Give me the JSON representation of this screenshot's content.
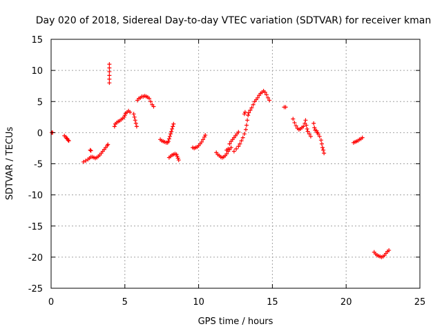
{
  "chart_data": {
    "type": "scatter",
    "title": "Day 020 of 2018, Sidereal Day-to-day VTEC variation (SDTVAR) for receiver kman",
    "xlabel": "GPS time / hours",
    "ylabel": "SDTVAR / TECUs",
    "xlim": [
      0,
      25
    ],
    "ylim": [
      -25,
      15
    ],
    "xticks": [
      0,
      5,
      10,
      15,
      20,
      25
    ],
    "yticks": [
      -25,
      -20,
      -15,
      -10,
      -5,
      0,
      5,
      10,
      15
    ],
    "grid": true,
    "marker": "+",
    "color": "#ff0000",
    "series": [
      {
        "name": "SDTVAR",
        "points": [
          [
            0.05,
            0.0
          ],
          [
            0.1,
            0.0
          ],
          [
            0.9,
            -0.5
          ],
          [
            1.0,
            -0.7
          ],
          [
            1.05,
            -0.9
          ],
          [
            1.1,
            -1.0
          ],
          [
            1.15,
            -1.2
          ],
          [
            1.2,
            -1.3
          ],
          [
            2.2,
            -4.7
          ],
          [
            2.35,
            -4.5
          ],
          [
            2.5,
            -4.3
          ],
          [
            2.6,
            -4.1
          ],
          [
            2.7,
            -3.9
          ],
          [
            2.8,
            -3.9
          ],
          [
            2.9,
            -4.0
          ],
          [
            3.0,
            -4.1
          ],
          [
            3.1,
            -4.0
          ],
          [
            3.2,
            -3.8
          ],
          [
            3.3,
            -3.6
          ],
          [
            3.4,
            -3.3
          ],
          [
            3.5,
            -3.0
          ],
          [
            3.6,
            -2.7
          ],
          [
            3.7,
            -2.4
          ],
          [
            3.8,
            -2.1
          ],
          [
            3.85,
            -1.9
          ],
          [
            2.65,
            -2.8
          ],
          [
            2.7,
            -2.9
          ],
          [
            3.95,
            11.0
          ],
          [
            3.95,
            10.4
          ],
          [
            3.95,
            9.8
          ],
          [
            3.95,
            9.2
          ],
          [
            3.95,
            8.6
          ],
          [
            3.95,
            8.0
          ],
          [
            4.3,
            1.0
          ],
          [
            4.35,
            1.4
          ],
          [
            4.45,
            1.6
          ],
          [
            4.55,
            1.8
          ],
          [
            4.65,
            1.9
          ],
          [
            4.75,
            2.1
          ],
          [
            4.85,
            2.3
          ],
          [
            4.95,
            2.5
          ],
          [
            5.0,
            2.8
          ],
          [
            5.05,
            3.1
          ],
          [
            5.15,
            3.3
          ],
          [
            5.25,
            3.5
          ],
          [
            5.35,
            3.3
          ],
          [
            5.6,
            3.0
          ],
          [
            5.65,
            2.5
          ],
          [
            5.7,
            2.0
          ],
          [
            5.75,
            1.5
          ],
          [
            5.8,
            1.0
          ],
          [
            5.85,
            5.2
          ],
          [
            5.95,
            5.5
          ],
          [
            6.05,
            5.6
          ],
          [
            6.15,
            5.8
          ],
          [
            6.25,
            5.8
          ],
          [
            6.35,
            5.9
          ],
          [
            6.45,
            5.8
          ],
          [
            6.55,
            5.7
          ],
          [
            6.65,
            5.5
          ],
          [
            6.75,
            5.0
          ],
          [
            6.85,
            4.5
          ],
          [
            6.95,
            4.2
          ],
          [
            7.4,
            -1.1
          ],
          [
            7.5,
            -1.3
          ],
          [
            7.6,
            -1.4
          ],
          [
            7.7,
            -1.5
          ],
          [
            7.8,
            -1.6
          ],
          [
            7.9,
            -1.6
          ],
          [
            7.95,
            -1.4
          ],
          [
            8.0,
            -1.0
          ],
          [
            8.05,
            -0.6
          ],
          [
            8.1,
            -0.2
          ],
          [
            8.15,
            0.2
          ],
          [
            8.2,
            0.6
          ],
          [
            8.25,
            1.0
          ],
          [
            8.3,
            1.4
          ],
          [
            8.0,
            -4.0
          ],
          [
            8.1,
            -3.8
          ],
          [
            8.2,
            -3.6
          ],
          [
            8.3,
            -3.5
          ],
          [
            8.4,
            -3.4
          ],
          [
            8.5,
            -3.5
          ],
          [
            8.55,
            -3.8
          ],
          [
            8.6,
            -4.1
          ],
          [
            8.65,
            -4.4
          ],
          [
            9.6,
            -2.4
          ],
          [
            9.7,
            -2.5
          ],
          [
            9.8,
            -2.4
          ],
          [
            9.9,
            -2.3
          ],
          [
            10.0,
            -2.1
          ],
          [
            10.1,
            -1.8
          ],
          [
            10.2,
            -1.5
          ],
          [
            10.3,
            -1.1
          ],
          [
            10.4,
            -0.7
          ],
          [
            10.45,
            -0.4
          ],
          [
            11.2,
            -3.2
          ],
          [
            11.3,
            -3.5
          ],
          [
            11.4,
            -3.7
          ],
          [
            11.5,
            -3.9
          ],
          [
            11.6,
            -4.0
          ],
          [
            11.7,
            -3.9
          ],
          [
            11.8,
            -3.7
          ],
          [
            11.9,
            -3.4
          ],
          [
            12.0,
            -3.0
          ],
          [
            12.1,
            -2.7
          ],
          [
            12.2,
            -2.4
          ],
          [
            11.9,
            -2.8
          ],
          [
            12.0,
            -2.6
          ],
          [
            12.1,
            -1.8
          ],
          [
            12.2,
            -1.4
          ],
          [
            12.3,
            -1.1
          ],
          [
            12.4,
            -0.8
          ],
          [
            12.5,
            -0.5
          ],
          [
            12.6,
            -0.2
          ],
          [
            12.7,
            0.1
          ],
          [
            12.4,
            -3.0
          ],
          [
            12.55,
            -2.6
          ],
          [
            12.7,
            -2.2
          ],
          [
            12.8,
            -1.8
          ],
          [
            12.9,
            -1.3
          ],
          [
            13.0,
            -0.8
          ],
          [
            13.1,
            -0.2
          ],
          [
            13.2,
            0.5
          ],
          [
            13.25,
            1.2
          ],
          [
            13.3,
            2.0
          ],
          [
            13.35,
            2.8
          ],
          [
            13.1,
            3.0
          ],
          [
            13.15,
            3.3
          ],
          [
            13.4,
            3.2
          ],
          [
            13.5,
            3.6
          ],
          [
            13.6,
            4.0
          ],
          [
            13.7,
            4.5
          ],
          [
            13.8,
            5.0
          ],
          [
            13.9,
            5.3
          ],
          [
            14.0,
            5.6
          ],
          [
            14.1,
            6.0
          ],
          [
            14.2,
            6.3
          ],
          [
            14.3,
            6.5
          ],
          [
            14.4,
            6.7
          ],
          [
            14.5,
            6.5
          ],
          [
            14.6,
            6.1
          ],
          [
            14.7,
            5.6
          ],
          [
            14.8,
            5.2
          ],
          [
            15.8,
            4.1
          ],
          [
            15.9,
            4.1
          ],
          [
            16.4,
            2.2
          ],
          [
            16.5,
            1.6
          ],
          [
            16.6,
            1.1
          ],
          [
            16.7,
            0.7
          ],
          [
            16.8,
            0.5
          ],
          [
            16.9,
            0.6
          ],
          [
            17.0,
            0.8
          ],
          [
            17.1,
            1.0
          ],
          [
            17.2,
            1.5
          ],
          [
            17.25,
            2.0
          ],
          [
            17.3,
            1.2
          ],
          [
            17.35,
            0.6
          ],
          [
            17.4,
            0.2
          ],
          [
            17.5,
            -0.2
          ],
          [
            17.6,
            -0.6
          ],
          [
            17.8,
            1.5
          ],
          [
            17.85,
            0.8
          ],
          [
            17.9,
            0.4
          ],
          [
            18.0,
            0.3
          ],
          [
            18.05,
            0.0
          ],
          [
            18.1,
            -0.2
          ],
          [
            18.2,
            -0.6
          ],
          [
            18.3,
            -1.2
          ],
          [
            18.35,
            -1.8
          ],
          [
            18.4,
            -2.4
          ],
          [
            18.45,
            -2.8
          ],
          [
            18.5,
            -3.3
          ],
          [
            20.5,
            -1.6
          ],
          [
            20.6,
            -1.5
          ],
          [
            20.7,
            -1.4
          ],
          [
            20.8,
            -1.3
          ],
          [
            20.9,
            -1.1
          ],
          [
            21.0,
            -1.0
          ],
          [
            21.1,
            -0.8
          ],
          [
            21.9,
            -19.2
          ],
          [
            22.0,
            -19.5
          ],
          [
            22.1,
            -19.7
          ],
          [
            22.2,
            -19.8
          ],
          [
            22.3,
            -19.9
          ],
          [
            22.4,
            -20.0
          ],
          [
            22.5,
            -19.9
          ],
          [
            22.6,
            -19.7
          ],
          [
            22.7,
            -19.4
          ],
          [
            22.8,
            -19.1
          ],
          [
            22.9,
            -18.9
          ]
        ]
      }
    ]
  }
}
